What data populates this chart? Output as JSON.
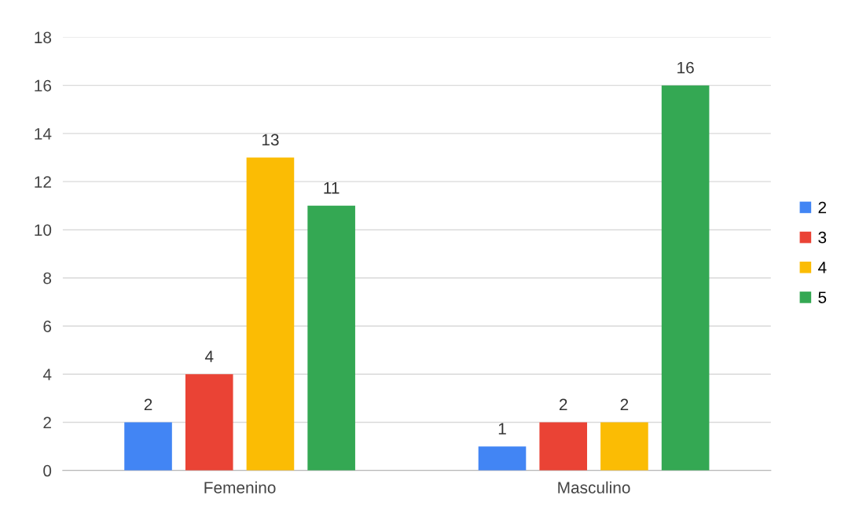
{
  "chart_data": {
    "type": "bar",
    "categories": [
      "Femenino",
      "Masculino"
    ],
    "series": [
      {
        "name": "2",
        "color": "#4285f4",
        "values": [
          2,
          1
        ]
      },
      {
        "name": "3",
        "color": "#ea4335",
        "values": [
          4,
          2
        ]
      },
      {
        "name": "4",
        "color": "#fbbc04",
        "values": [
          13,
          2
        ]
      },
      {
        "name": "5",
        "color": "#34a853",
        "values": [
          11,
          16
        ]
      }
    ],
    "ylim": [
      0,
      18
    ],
    "yticks": [
      0,
      2,
      4,
      6,
      8,
      10,
      12,
      14,
      16,
      18
    ],
    "grid": "y",
    "legend": "right",
    "data_labels": true
  }
}
